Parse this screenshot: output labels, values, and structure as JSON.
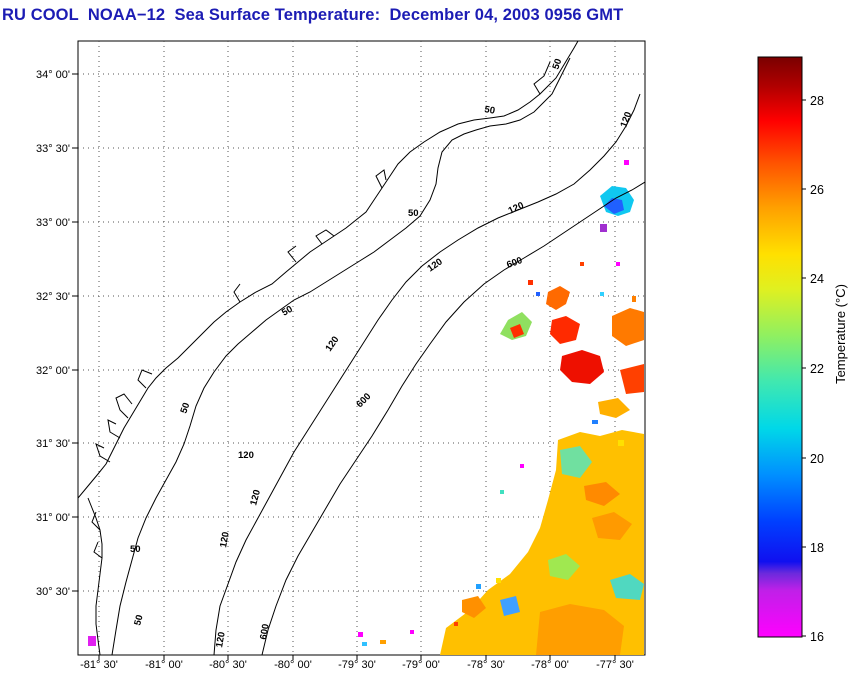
{
  "title": "RU COOL  NOAA−12  Sea Surface Temperature:  December 04, 2003 0956 GMT",
  "map": {
    "lat_ticks": [
      "34° 00'",
      "33° 30'",
      "33° 00'",
      "32° 30'",
      "32° 00'",
      "31° 30'",
      "31° 00'",
      "30° 30'"
    ],
    "lon_ticks": [
      "-81° 30'",
      "-81° 00'",
      "-80° 30'",
      "-80° 00'",
      "-79° 30'",
      "-79° 00'",
      "-78° 30'",
      "-78° 00'",
      "-77° 30'"
    ],
    "contour_labels": [
      {
        "text": "50",
        "id": "contour-50-a"
      },
      {
        "text": "50",
        "id": "contour-50-b"
      },
      {
        "text": "50",
        "id": "contour-50-c"
      },
      {
        "text": "50",
        "id": "contour-50-d"
      },
      {
        "text": "50",
        "id": "contour-50-e"
      },
      {
        "text": "50",
        "id": "contour-50-f"
      },
      {
        "text": "50",
        "id": "contour-50-g"
      },
      {
        "text": "120",
        "id": "contour-120-a"
      },
      {
        "text": "120",
        "id": "contour-120-b"
      },
      {
        "text": "120",
        "id": "contour-120-c"
      },
      {
        "text": "120",
        "id": "contour-120-d"
      },
      {
        "text": "120",
        "id": "contour-120-e"
      },
      {
        "text": "120",
        "id": "contour-120-f"
      },
      {
        "text": "120",
        "id": "contour-120-g"
      },
      {
        "text": "120",
        "id": "contour-120-h"
      },
      {
        "text": "600",
        "id": "contour-600-a"
      },
      {
        "text": "600",
        "id": "contour-600-b"
      },
      {
        "text": "600",
        "id": "contour-600-c"
      }
    ]
  },
  "colorbar": {
    "label": "Temperature (°C)",
    "ticks": [
      "28",
      "26",
      "24",
      "22",
      "20",
      "18",
      "16"
    ],
    "range": [
      16,
      29
    ]
  },
  "colors": {
    "title": "#1c1cb4",
    "land_outline": "#000000",
    "grid": "#555555"
  }
}
